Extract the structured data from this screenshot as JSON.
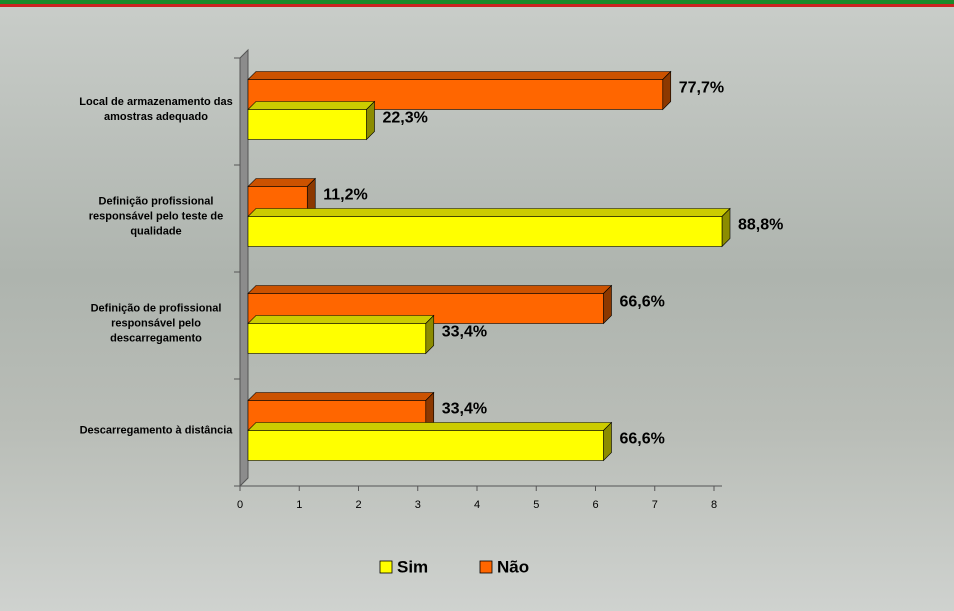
{
  "chart_data": {
    "type": "bar",
    "orientation": "horizontal",
    "categories": [
      "Local de armazenamento das amostras adequado",
      "Definição profissional responsável pelo teste de qualidade",
      "Definição de profissional responsável pelo descarregamento",
      "Descarregamento à distância"
    ],
    "series": [
      {
        "name": "Não",
        "color": "#ff6600",
        "values": [
          7,
          1,
          6,
          3
        ],
        "value_labels": [
          "77,7%",
          "11,2%",
          "66,6%",
          "33,4%"
        ]
      },
      {
        "name": "Sim",
        "color": "#ffff00",
        "values": [
          2,
          8,
          3,
          6
        ],
        "value_labels": [
          "22,3%",
          "88,8%",
          "33,4%",
          "66,6%"
        ]
      }
    ],
    "xlim": [
      0,
      8
    ],
    "xticks": [
      0,
      1,
      2,
      3,
      4,
      5,
      6,
      7,
      8
    ]
  }
}
